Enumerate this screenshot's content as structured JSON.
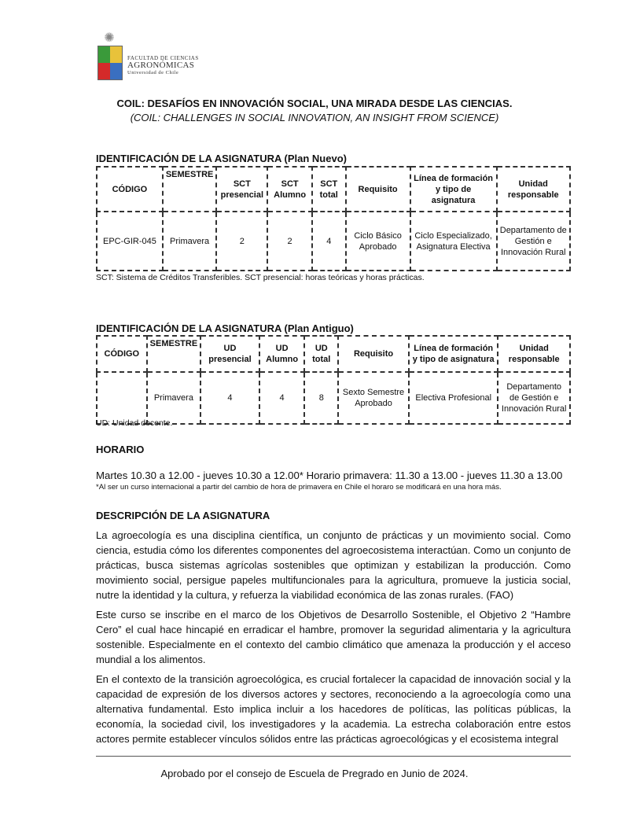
{
  "header": {
    "logo": {
      "line1": "Facultad de Ciencias",
      "line2": "Agronómicas",
      "line3": "Universidad de Chile"
    }
  },
  "title": "COIL: DESAFÍOS EN INNOVACIÓN SOCIAL, UNA MIRADA DESDE LAS CIENCIAS.",
  "subtitle": "(COIL: CHALLENGES IN SOCIAL INNOVATION, AN INSIGHT FROM SCIENCE)",
  "plan_nuevo": {
    "heading": "IDENTIFICACIÓN DE LA ASIGNATURA (Plan Nuevo)",
    "headers": [
      "CÓDIGO",
      "SEMESTRE",
      "SCT presencial",
      "SCT Alumno",
      "SCT total",
      "Requisito",
      "Línea de formación y tipo de asignatura",
      "Unidad responsable"
    ],
    "row": [
      "EPC-GIR-045",
      "Primavera",
      "2",
      "2",
      "4",
      "Ciclo Básico Aprobado",
      "Ciclo Especializado, Asignatura Electiva",
      "Departamento de Gestión e Innovación Rural"
    ],
    "note": "SCT: Sistema de Créditos Transferibles. SCT presencial: horas teóricas y horas prácticas."
  },
  "plan_antiguo": {
    "heading": "IDENTIFICACIÓN DE LA ASIGNATURA (Plan Antiguo)",
    "headers": [
      "CÓDIGO",
      "SEMESTRE",
      "UD presencial",
      "UD Alumno",
      "UD total",
      "Requisito",
      "Línea de formación y tipo de asignatura",
      "Unidad responsable"
    ],
    "row": [
      "",
      "Primavera",
      "4",
      "4",
      "8",
      "Sexto Semestre Aprobado",
      "Electiva Profesional",
      "Departamento de Gestión e Innovación Rural"
    ],
    "note": "UD: Unidad docente."
  },
  "horario": {
    "heading": "HORARIO",
    "text": "Martes 10.30 a 12.00 - jueves 10.30 a 12.00* Horario primavera: 11.30 a 13.00 - jueves 11.30 a 13.00",
    "note": "*Al ser un curso internacional a partir del cambio de hora de primavera en Chile el horaro se modificará en una hora más."
  },
  "descripcion": {
    "heading": "DESCRIPCIÓN DE LA ASIGNATURA",
    "paragraphs": [
      "La agroecología es una disciplina científica, un conjunto de prácticas y un movimiento social. Como ciencia, estudia cómo los diferentes componentes del agroecosistema interactúan. Como un conjunto de prácticas, busca sistemas agrícolas sostenibles que optimizan y estabilizan la producción. Como movimiento social, persigue papeles multifuncionales para la agricultura, promueve la justicia social, nutre la identidad y la cultura, y refuerza la viabilidad económica de las zonas rurales. (FAO)",
      "Este curso se inscribe en el marco de los Objetivos de Desarrollo Sostenible, el Objetivo 2 “Hambre Cero” el cual hace hincapié en erradicar el hambre, promover la seguridad alimentaria y la agricultura sostenible. Especialmente en el contexto del cambio climático que amenaza la producción y el acceso mundial a los alimentos.",
      "En el contexto de la transición agroecológica, es crucial fortalecer la capacidad de innovación social y la capacidad de expresión de los diversos actores y sectores, reconociendo a la agroecología como una alternativa fundamental. Esto implica incluir a los hacedores de políticas, las políticas públicas, la economía, la sociedad civil, los investigadores y la academia. La estrecha colaboración entre estos actores permite establecer vínculos sólidos entre las prácticas agroecológicas y el ecosistema integral"
    ]
  },
  "footer": "Aprobado por el consejo de Escuela de Pregrado en Junio de 2024."
}
